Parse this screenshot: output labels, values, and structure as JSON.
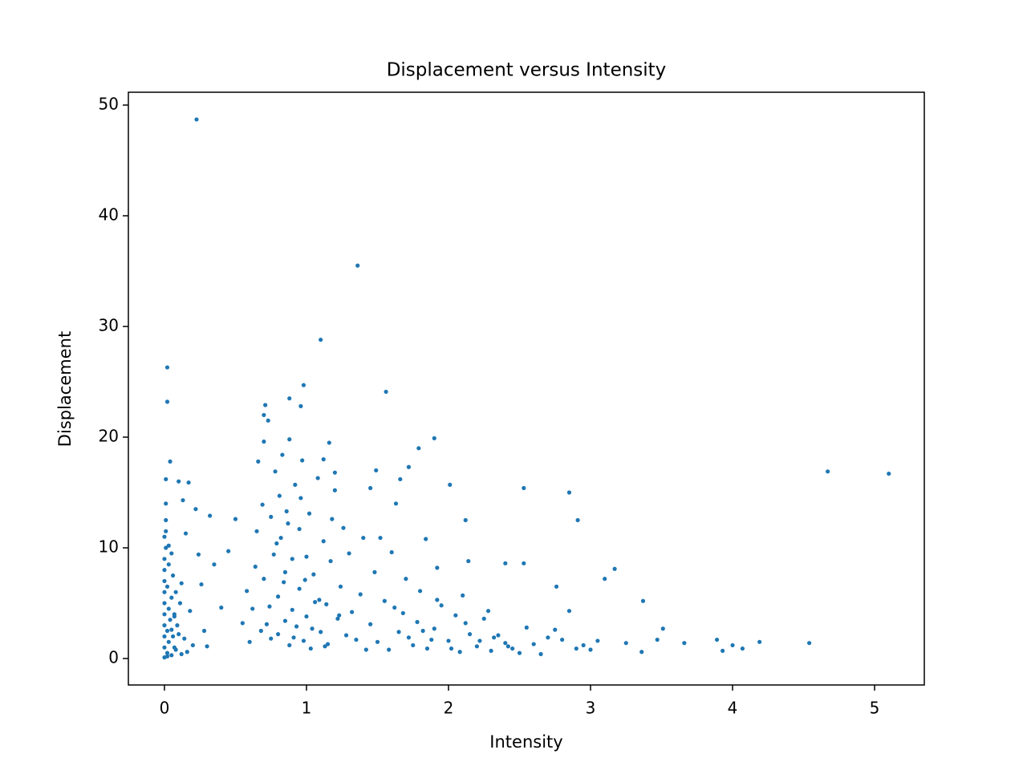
{
  "chart_data": {
    "type": "scatter",
    "title": "Displacement versus Intensity",
    "x_label": "Intensity",
    "y_label": "Displacement",
    "color": "#1f77b4",
    "xlim": [
      -0.254,
      5.35
    ],
    "ylim": [
      -2.39,
      51.16
    ],
    "xticks": [
      0,
      1,
      2,
      3,
      4,
      5
    ],
    "yticks": [
      0,
      10,
      20,
      30,
      40,
      50
    ],
    "x": [
      0.226,
      1.36,
      1.1,
      0.02,
      0.02,
      0.98,
      1.56,
      4.67,
      5.1,
      1.9,
      1.79,
      2.53,
      2.85,
      2.01,
      2.91,
      2.12,
      3.17,
      3.1,
      3.37,
      4.54,
      4.19,
      4.07,
      4.0,
      3.93,
      3.89,
      3.66,
      3.51,
      3.47,
      3.36,
      3.25,
      2.76,
      2.53,
      2.4,
      2.14,
      1.92,
      1.84,
      1.63,
      1.66,
      1.72,
      1.49,
      1.45,
      1.2,
      1.12,
      1.16,
      0.88,
      0.96,
      0.71,
      0.7,
      0,
      0,
      0,
      0,
      0,
      0,
      0,
      0,
      0,
      0,
      0.01,
      0.01,
      0.01,
      0.01,
      0.02,
      0.02,
      0.02,
      0.03,
      0.03,
      0.03,
      0.04,
      0.04,
      0.05,
      0.05,
      0.05,
      0.06,
      0.06,
      0.07,
      0.07,
      0.08,
      0.08,
      0.09,
      0.1,
      0.1,
      0.11,
      0.12,
      0.13,
      0.14,
      0.15,
      0.16,
      0.18,
      0.2,
      0.22,
      0.24,
      0.26,
      0.28,
      0.3,
      0.32,
      0.35,
      0.4,
      0.45,
      0.5,
      0.02,
      0.0,
      0.01,
      0.03,
      0.05,
      0.07,
      0.12,
      0.17,
      0.6,
      0.62,
      0.65,
      0.66,
      0.68,
      0.7,
      0.7,
      0.72,
      0.73,
      0.75,
      0.75,
      0.77,
      0.78,
      0.8,
      0.8,
      0.81,
      0.82,
      0.83,
      0.85,
      0.85,
      0.86,
      0.88,
      0.88,
      0.9,
      0.9,
      0.92,
      0.93,
      0.95,
      0.95,
      0.97,
      0.98,
      1.0,
      1.0,
      1.02,
      1.03,
      1.05,
      1.06,
      1.08,
      1.1,
      1.12,
      1.14,
      1.15,
      1.17,
      1.2,
      1.22,
      1.24,
      1.26,
      1.28,
      1.3,
      1.32,
      1.35,
      1.38,
      1.4,
      1.42,
      0.55,
      0.58,
      0.64,
      0.69,
      0.74,
      0.79,
      0.84,
      0.87,
      0.91,
      0.96,
      0.99,
      1.04,
      1.09,
      1.13,
      1.18,
      1.23,
      1.45,
      1.5,
      1.55,
      1.58,
      1.6,
      1.65,
      1.68,
      1.7,
      1.75,
      1.78,
      1.8,
      1.85,
      1.9,
      1.95,
      2.0,
      2.05,
      2.08,
      2.1,
      2.15,
      2.2,
      2.25,
      2.3,
      2.35,
      2.4,
      2.45,
      2.5,
      2.55,
      2.6,
      2.65,
      2.7,
      2.75,
      2.8,
      2.85,
      2.9,
      2.95,
      3.0,
      3.05,
      1.52,
      1.62,
      1.72,
      1.82,
      1.92,
      2.02,
      2.12,
      2.22,
      2.32,
      2.42,
      1.48,
      1.88,
      2.28
    ],
    "values": [
      48.7,
      35.5,
      28.8,
      26.3,
      23.2,
      24.7,
      24.1,
      16.9,
      16.7,
      19.9,
      19.0,
      15.4,
      15.0,
      15.7,
      12.5,
      12.5,
      8.1,
      7.2,
      5.2,
      1.4,
      1.5,
      0.9,
      1.2,
      0.7,
      1.7,
      1.4,
      2.7,
      1.7,
      0.6,
      1.4,
      6.5,
      8.6,
      8.6,
      8.8,
      8.2,
      10.8,
      14.0,
      16.2,
      17.3,
      17.0,
      15.4,
      16.8,
      18.0,
      19.5,
      23.5,
      22.8,
      22.9,
      22.0,
      0.1,
      1,
      2,
      3,
      4,
      5,
      6,
      7,
      8,
      9,
      10,
      11.5,
      12.5,
      14,
      0.5,
      2.5,
      6.5,
      1.5,
      4.5,
      8.5,
      17.8,
      3.5,
      0.3,
      5.5,
      9.5,
      2,
      7.5,
      1,
      4,
      0.8,
      6,
      3,
      16,
      2.2,
      5,
      0.4,
      14.3,
      1.8,
      11.3,
      0.6,
      4.3,
      1.2,
      13.5,
      9.4,
      6.7,
      2.5,
      1.1,
      12.9,
      8.5,
      4.6,
      9.7,
      12.6,
      0.2,
      11,
      16.2,
      10.2,
      2.6,
      3.8,
      6.8,
      15.9,
      1.5,
      4.5,
      11.5,
      17.8,
      2.5,
      19.6,
      7.2,
      3.1,
      21.5,
      12.8,
      1.8,
      9.4,
      16.9,
      2.2,
      5.6,
      14.7,
      10.9,
      18.4,
      3.4,
      7.8,
      13.3,
      1.2,
      19.8,
      9,
      4.4,
      15.7,
      2.9,
      11.7,
      6.3,
      17.9,
      1.6,
      9.2,
      3.8,
      13.1,
      0.9,
      7.6,
      5.1,
      16.3,
      2.4,
      10.6,
      4.9,
      1.3,
      8.8,
      15.2,
      3.6,
      6.5,
      11.8,
      2.1,
      9.5,
      4.2,
      1.7,
      5.8,
      10.9,
      0.8,
      3.2,
      6.1,
      8.3,
      13.9,
      4.7,
      10.4,
      6.9,
      12.2,
      1.9,
      14.5,
      7.1,
      2.7,
      5.3,
      1.1,
      12.6,
      3.9,
      3.1,
      1.5,
      5.2,
      0.8,
      9.6,
      2.4,
      4.1,
      7.2,
      1.2,
      3.3,
      6.1,
      0.9,
      2.7,
      4.8,
      1.6,
      3.9,
      0.6,
      5.7,
      2.2,
      1.1,
      3.6,
      0.7,
      2.1,
      1.4,
      0.9,
      0.5,
      2.8,
      1.3,
      0.4,
      1.9,
      2.6,
      1.7,
      4.3,
      0.9,
      1.2,
      0.8,
      1.6,
      10.9,
      4.6,
      1.9,
      2.5,
      5.3,
      0.9,
      3.2,
      1.6,
      1.9,
      1.1,
      7.8,
      1.7,
      4.3
    ]
  }
}
